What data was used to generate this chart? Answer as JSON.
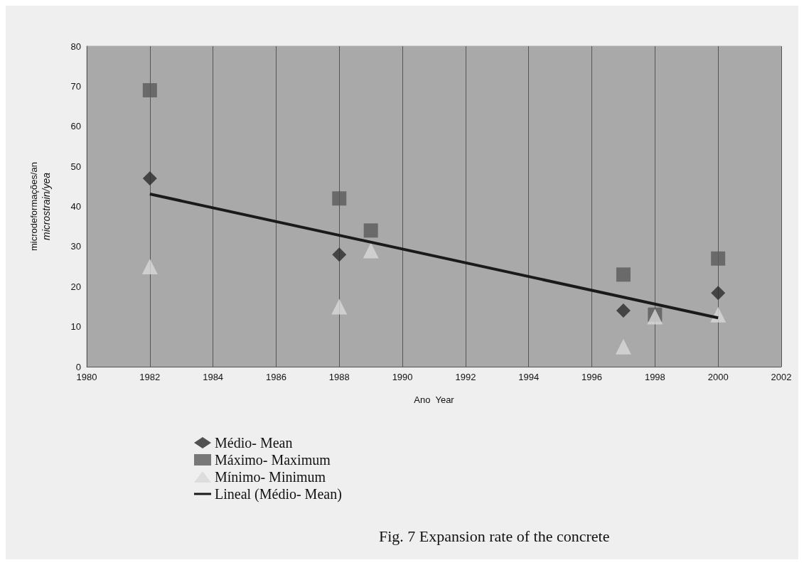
{
  "chart_data": {
    "type": "scatter",
    "title": "Fig. 7 Expansion rate of the concrete",
    "xlabel": "Ano  Year",
    "ylabel": "microdeformações/an\nmicrostrain/yea",
    "series": [
      {
        "name": "Médio- Mean",
        "color": "#2a2a2a",
        "marker": "diamond",
        "x": [
          1982,
          1988,
          1989,
          1997,
          1998,
          2000
        ],
        "values": [
          47,
          28,
          null,
          14,
          null,
          18.4
        ]
      },
      {
        "name": "Máximo- Maximum",
        "color": "#5a5a5a",
        "marker": "square",
        "x": [
          1982,
          1988,
          1989,
          1997,
          1998,
          2000
        ],
        "values": [
          69,
          42,
          34,
          23,
          13,
          27
        ]
      },
      {
        "name": "Mínimo- Minimum",
        "color": "#d8d8d8",
        "marker": "triangle",
        "x": [
          1982,
          1988,
          1989,
          1997,
          1998,
          2000
        ],
        "values": [
          25,
          15,
          29,
          5,
          12.5,
          13
        ]
      },
      {
        "name": "Lineal (Médio- Mean)",
        "type": "line",
        "color": "#1a1a1a",
        "marker": "none",
        "x": [
          1982,
          2000
        ],
        "values": [
          43.1,
          12.2
        ]
      }
    ],
    "xlim": [
      1980,
      2002
    ],
    "xticks": [
      1980,
      1982,
      1984,
      1986,
      1988,
      1990,
      1992,
      1994,
      1996,
      1998,
      2000,
      2002
    ],
    "ylim": [
      0,
      80
    ],
    "yticks": [
      0,
      10,
      20,
      30,
      40,
      50,
      60,
      70,
      80
    ],
    "grid": "x",
    "legend": "bottom left"
  }
}
